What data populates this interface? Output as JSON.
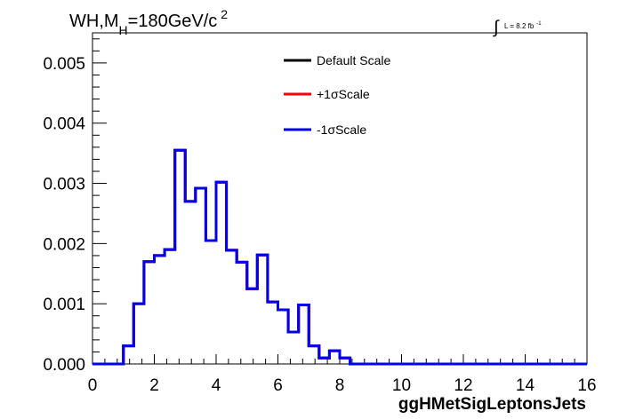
{
  "chart_data": {
    "type": "line",
    "title_parts": {
      "main": "WH,M",
      "sub": "H",
      "rest": "=180GeV/c",
      "sup": "2"
    },
    "lumi": {
      "integral": "∫",
      "text": "L = 8.2 fb",
      "sup": "-1"
    },
    "xlabel": "ggHMetSigLeptonsJets",
    "ylabel": "",
    "xlim": [
      0,
      16
    ],
    "ylim": [
      0,
      0.0055
    ],
    "xticks": [
      "0",
      "2",
      "4",
      "6",
      "8",
      "10",
      "12",
      "14",
      "16"
    ],
    "yticks": [
      "0.000",
      "0.001",
      "0.002",
      "0.003",
      "0.004",
      "0.005"
    ],
    "grid": false,
    "legend_position": "top-center",
    "bin_edges": [
      0,
      0.333,
      0.667,
      1,
      1.333,
      1.667,
      2,
      2.333,
      2.667,
      3,
      3.333,
      3.667,
      4,
      4.333,
      4.667,
      5,
      5.333,
      5.667,
      6,
      6.333,
      6.667,
      7,
      7.333,
      7.667,
      8,
      8.333,
      8.667,
      9,
      9.333,
      9.667,
      10,
      10.333,
      10.667,
      11,
      11.333,
      11.667,
      12,
      12.333,
      12.667,
      13,
      13.333,
      13.667,
      14,
      14.333,
      14.667,
      15,
      15.333,
      15.667,
      16
    ],
    "series": [
      {
        "name": "Default Scale",
        "color": "#000000",
        "values": [
          0,
          0,
          0,
          0.0003,
          0.001,
          0.0017,
          0.0018,
          0.0019,
          0.00355,
          0.0027,
          0.00292,
          0.00205,
          0.00302,
          0.00189,
          0.00169,
          0.00125,
          0.00181,
          0.00103,
          0.0009,
          0.00053,
          0.00098,
          0.0003,
          0.0001,
          0.00022,
          0.0001,
          0,
          0,
          0,
          0,
          0,
          0,
          0,
          0,
          0,
          0,
          0,
          0,
          0,
          0,
          0,
          0,
          0,
          0,
          0,
          0,
          0,
          0,
          0
        ]
      },
      {
        "name": "+1σScale",
        "color": "#ff0000",
        "values": [
          0,
          0,
          0,
          0.0003,
          0.001,
          0.0017,
          0.0018,
          0.0019,
          0.00355,
          0.0027,
          0.00292,
          0.00205,
          0.00302,
          0.00189,
          0.00169,
          0.00125,
          0.00181,
          0.00103,
          0.0009,
          0.00053,
          0.00098,
          0.0003,
          0.0001,
          0.00022,
          0.0001,
          0,
          0,
          0,
          0,
          0,
          0,
          0,
          0,
          0,
          0,
          0,
          0,
          0,
          0,
          0,
          0,
          0,
          0,
          0,
          0,
          0,
          0,
          0
        ]
      },
      {
        "name": "-1σScale",
        "color": "#0000ee",
        "values": [
          0,
          0,
          0,
          0.0003,
          0.001,
          0.0017,
          0.0018,
          0.0019,
          0.00355,
          0.0027,
          0.00292,
          0.00205,
          0.00302,
          0.00189,
          0.00169,
          0.00125,
          0.00181,
          0.00103,
          0.0009,
          0.00053,
          0.00098,
          0.0003,
          0.0001,
          0.00022,
          0.0001,
          0,
          0,
          0,
          0,
          0,
          0,
          0,
          0,
          0,
          0,
          0,
          0,
          0,
          0,
          0,
          0,
          0,
          0,
          0,
          0,
          0,
          0,
          0
        ]
      }
    ]
  }
}
